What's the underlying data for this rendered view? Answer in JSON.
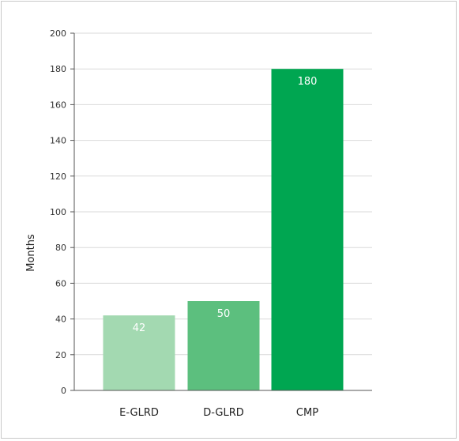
{
  "chart_data": {
    "type": "bar",
    "categories": [
      "E-GLRD",
      "D-GLRD",
      "CMP"
    ],
    "values": [
      42,
      50,
      180
    ],
    "data_labels": [
      "42",
      "50",
      "180"
    ],
    "bar_colors": [
      "#a3d9b1",
      "#5cbf7e",
      "#00a651"
    ],
    "xlabel": "",
    "ylabel": "Months",
    "ylim": [
      0,
      200
    ],
    "yticks": [
      0,
      20,
      40,
      60,
      80,
      100,
      120,
      140,
      160,
      180,
      200
    ],
    "ytick_labels": [
      "0",
      "20",
      "40",
      "60",
      "80",
      "100",
      "120",
      "140",
      "160",
      "180",
      "200"
    ],
    "grid": true,
    "gridline_color": "#d9d9d9",
    "axis_color": "#555555"
  }
}
